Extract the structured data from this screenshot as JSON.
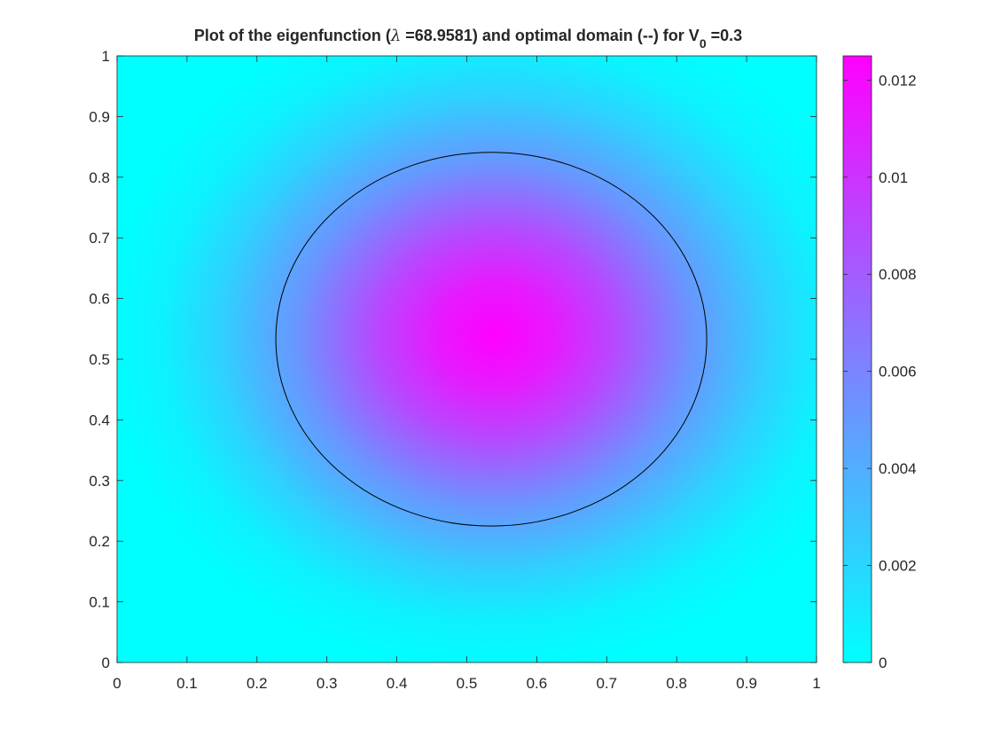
{
  "chart_data": {
    "type": "heatmap",
    "title": {
      "prefix": "Plot of the eigenfunction (",
      "lambda_symbol": "λ",
      "lambda_text": " =68.9581) and optimal domain (--) for V",
      "subscript": "0",
      "suffix": " =0.3"
    },
    "xlim": [
      0,
      1
    ],
    "ylim": [
      0,
      1
    ],
    "x_ticks": [
      "0",
      "0.1",
      "0.2",
      "0.3",
      "0.4",
      "0.5",
      "0.6",
      "0.7",
      "0.8",
      "0.9",
      "1"
    ],
    "y_ticks": [
      "0",
      "0.1",
      "0.2",
      "0.3",
      "0.4",
      "0.5",
      "0.6",
      "0.7",
      "0.8",
      "0.9",
      "1"
    ],
    "xlabel": "",
    "ylabel": "",
    "grid": false,
    "colormap": {
      "name": "cool",
      "low_color": "#00ffff",
      "high_color": "#ff00ff"
    },
    "color_range": [
      0,
      0.0125
    ],
    "colorbar_ticks": [
      "0",
      "0.002",
      "0.004",
      "0.006",
      "0.008",
      "0.01",
      "0.012"
    ],
    "colorbar_tick_values": [
      0,
      0.002,
      0.004,
      0.006,
      0.008,
      0.01,
      0.012
    ],
    "field_peak": {
      "x": 0.54,
      "y": 0.54,
      "value": 0.0125
    },
    "optimal_domain_contour": {
      "shape": "ellipse",
      "center_x": 0.535,
      "center_y": 0.533,
      "radius_x": 0.308,
      "radius_y": 0.308,
      "stroke": "#000000"
    }
  }
}
